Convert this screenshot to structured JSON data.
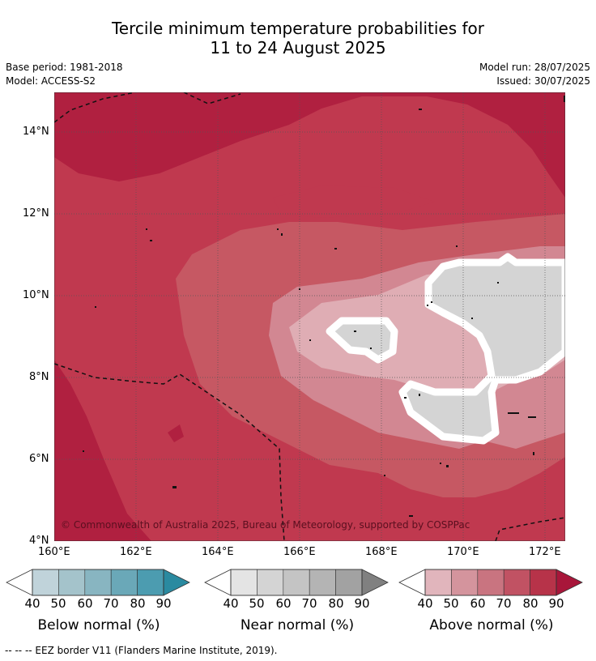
{
  "header": {
    "title_line1": "Tercile minimum temperature probabilities for",
    "title_line2": "11 to 24 August 2025",
    "base_period": "Base period: 1981-2018",
    "model": "Model: ACCESS-S2",
    "model_run": "Model run: 28/07/2025",
    "issued": "Issued: 30/07/2025"
  },
  "map": {
    "lat_ticks": [
      "14°N",
      "12°N",
      "10°N",
      "8°N",
      "6°N",
      "4°N"
    ],
    "lon_ticks": [
      "160°E",
      "162°E",
      "164°E",
      "166°E",
      "168°E",
      "170°E",
      "172°E"
    ],
    "copyright": "© Commonwealth of Australia 2025, Bureau of Meteorology, supported by COSPPac"
  },
  "legends": [
    {
      "label": "Below normal (%)",
      "ticks": [
        "40",
        "50",
        "60",
        "70",
        "80",
        "90"
      ],
      "colors": [
        "#c0d3da",
        "#a4c3cb",
        "#88b5c1",
        "#6aa8b8",
        "#4c9cb0",
        "#3891a4"
      ]
    },
    {
      "label": "Near normal (%)",
      "ticks": [
        "40",
        "50",
        "60",
        "70",
        "80",
        "90"
      ],
      "colors": [
        "#e4e4e4",
        "#d4d4d4",
        "#c4c4c4",
        "#b4b4b4",
        "#a2a2a2",
        "#8c8c8c"
      ]
    },
    {
      "label": "Above normal (%)",
      "ticks": [
        "40",
        "50",
        "60",
        "70",
        "80",
        "90"
      ],
      "colors": [
        "#e1b5bc",
        "#d4949d",
        "#c97480",
        "#c15263",
        "#b73349",
        "#ad1c3a"
      ]
    }
  ],
  "footnote": "--  --  -- EEZ border V11 (Flanders Marine Institute, 2019)."
}
